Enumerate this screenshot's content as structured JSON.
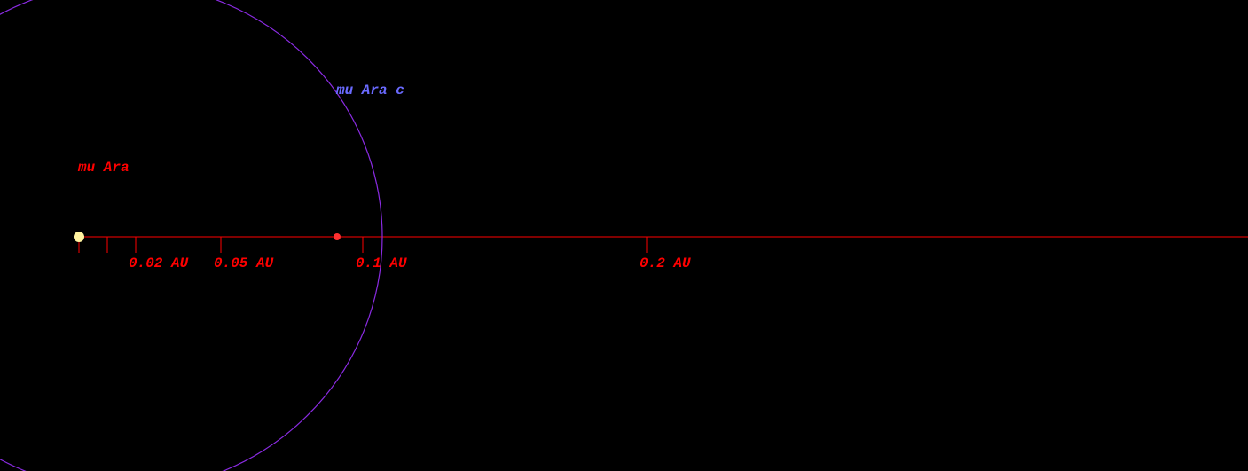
{
  "star": {
    "name": "mu Ara",
    "color": "#fff3a0",
    "label_color": "#ff0000"
  },
  "planet": {
    "name": "mu Ara c",
    "label_color": "#6a6aff",
    "orbit_color": "#8a2be2",
    "marker_color": "#ff3030"
  },
  "scale_bar": {
    "color": "#ff0000",
    "unit": "AU",
    "ticks": [
      {
        "value": 0.0,
        "label": ""
      },
      {
        "value": 0.01,
        "label": ""
      },
      {
        "value": 0.02,
        "label": "0.02 AU"
      },
      {
        "value": 0.05,
        "label": "0.05 AU"
      },
      {
        "value": 0.1,
        "label": "0.1 AU"
      },
      {
        "value": 0.2,
        "label": "0.2 AU"
      }
    ]
  }
}
